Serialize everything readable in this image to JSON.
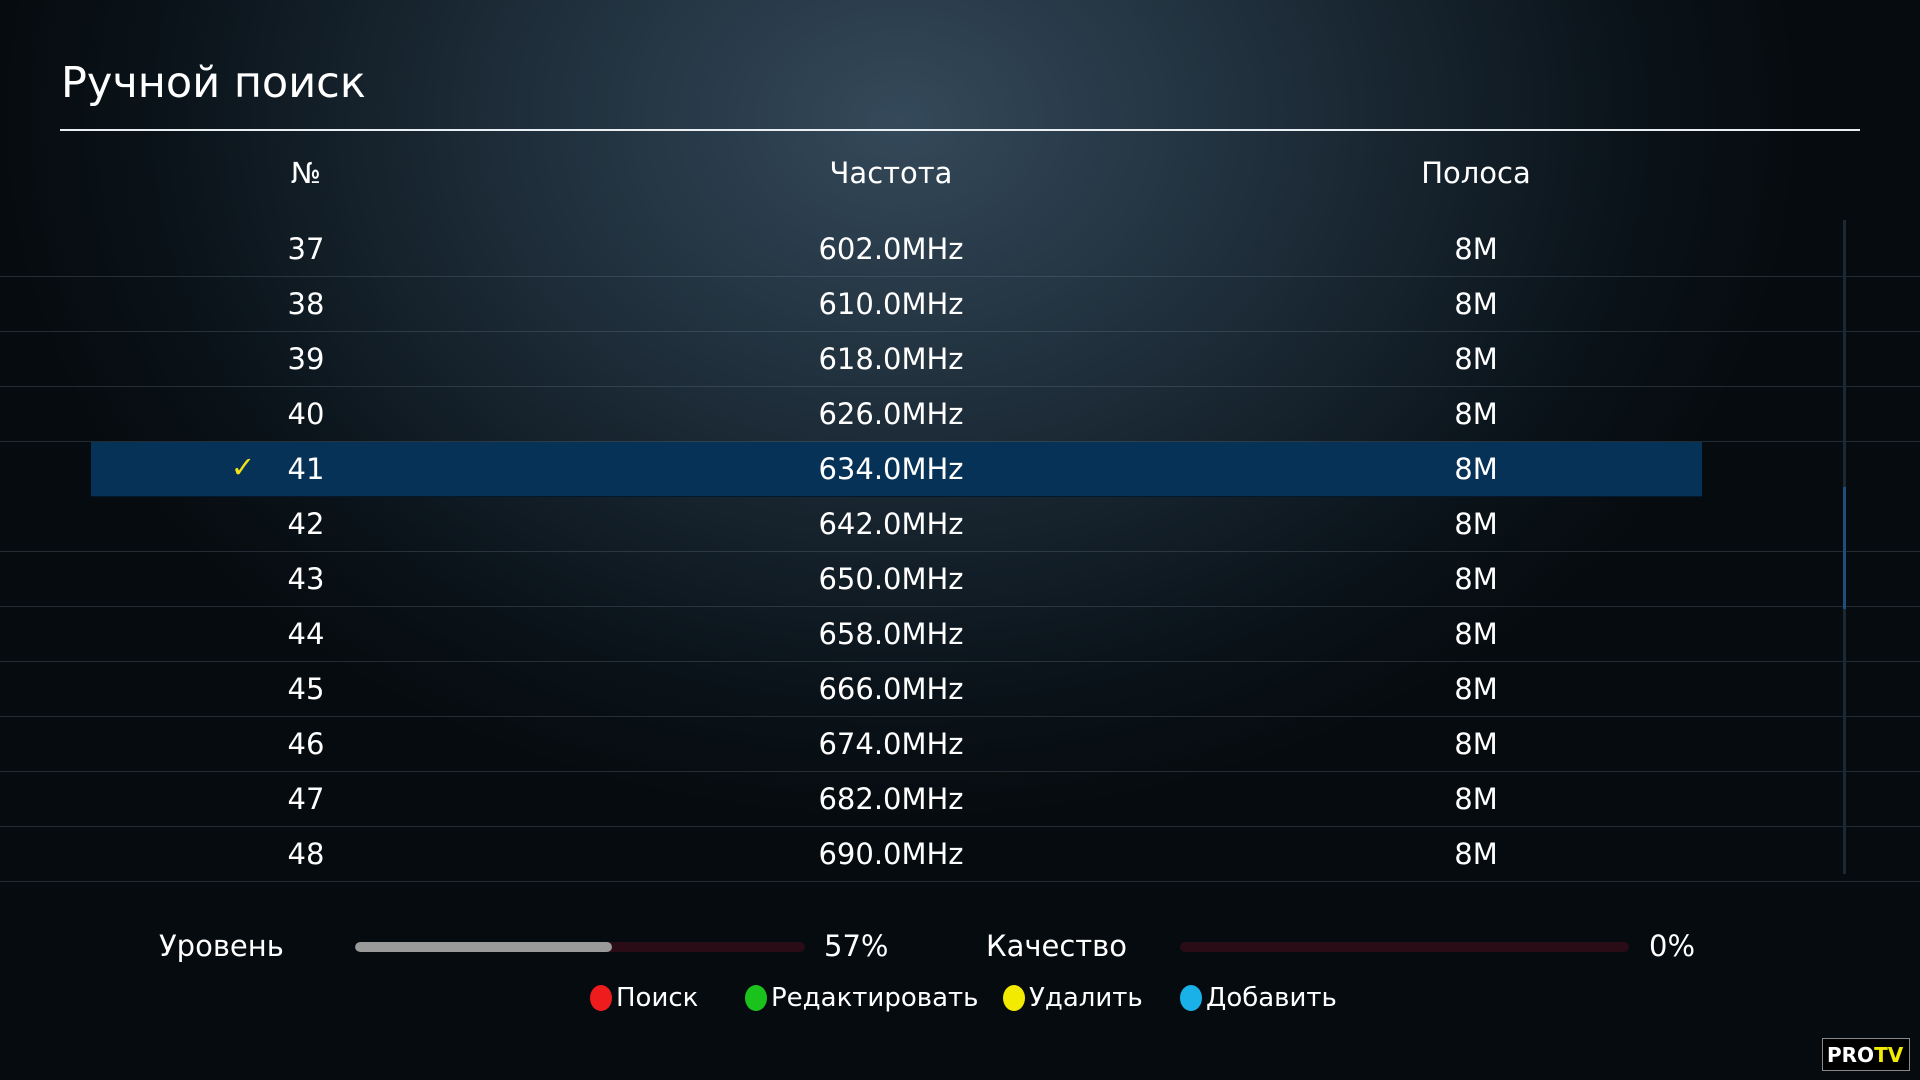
{
  "title": "Ручной поиск",
  "columns": {
    "num": "№",
    "freq": "Частота",
    "band": "Полоса"
  },
  "rows": [
    {
      "num": "37",
      "freq": "602.0MHz",
      "band": "8M"
    },
    {
      "num": "38",
      "freq": "610.0MHz",
      "band": "8M"
    },
    {
      "num": "39",
      "freq": "618.0MHz",
      "band": "8M"
    },
    {
      "num": "40",
      "freq": "626.0MHz",
      "band": "8M"
    },
    {
      "num": "41",
      "freq": "634.0MHz",
      "band": "8M",
      "selected": true,
      "check": "✓"
    },
    {
      "num": "42",
      "freq": "642.0MHz",
      "band": "8M"
    },
    {
      "num": "43",
      "freq": "650.0MHz",
      "band": "8M"
    },
    {
      "num": "44",
      "freq": "658.0MHz",
      "band": "8M"
    },
    {
      "num": "45",
      "freq": "666.0MHz",
      "band": "8M"
    },
    {
      "num": "46",
      "freq": "674.0MHz",
      "band": "8M"
    },
    {
      "num": "47",
      "freq": "682.0MHz",
      "band": "8M"
    },
    {
      "num": "48",
      "freq": "690.0MHz",
      "band": "8M"
    }
  ],
  "signal": {
    "level_label": "Уровень",
    "level_value": "57%",
    "level_percent": 57,
    "quality_label": "Качество",
    "quality_value": "0%",
    "quality_percent": 0
  },
  "buttons": [
    {
      "label": "Поиск",
      "color": "#ee1c1c"
    },
    {
      "label": "Редактировать",
      "color": "#1cc21c"
    },
    {
      "label": "Удалить",
      "color": "#f2ea00"
    },
    {
      "label": "Добавить",
      "color": "#1ab0e8"
    }
  ],
  "logo": "PRO TV"
}
